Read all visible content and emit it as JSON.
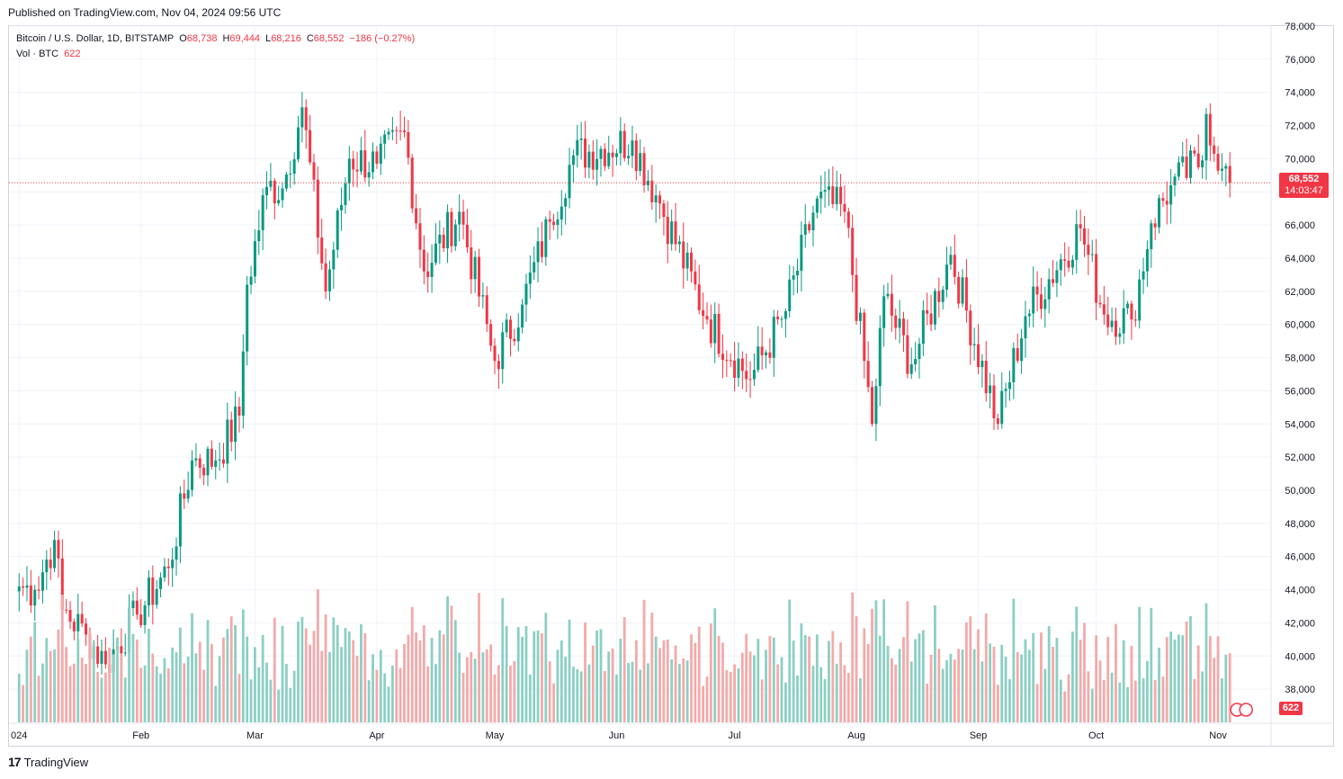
{
  "header": {
    "published": "Published on TradingView.com, Nov 04, 2024 09:56 UTC"
  },
  "legend": {
    "symbol": "Bitcoin / U.S. Dollar, 1D, BITSTAMP",
    "o_label": "O",
    "o_value": "68,738",
    "h_label": "H",
    "h_value": "69,444",
    "l_label": "L",
    "l_value": "68,216",
    "c_label": "C",
    "c_value": "68,552",
    "change": "−186 (−0.27%)",
    "vol_label": "Vol · BTC",
    "vol_value": "622"
  },
  "price_tag": {
    "price": "68,552",
    "countdown": "14:03:47"
  },
  "volume_tag": "622",
  "footer": {
    "brand": "TradingView"
  },
  "colors": {
    "up": "#089981",
    "down": "#f23645",
    "vol_up": "#8ccfc4",
    "vol_down": "#f4a9a9"
  },
  "chart_data": {
    "type": "candlestick",
    "symbol": "Bitcoin / U.S. Dollar",
    "interval": "1D",
    "exchange": "BITSTAMP",
    "x_tick_labels": [
      "024",
      "Feb",
      "Mar",
      "Apr",
      "May",
      "Jun",
      "Jul",
      "Aug",
      "Sep",
      "Oct",
      "Nov"
    ],
    "y_tick_labels": [
      "38,000",
      "40,000",
      "42,000",
      "44,000",
      "46,000",
      "48,000",
      "50,000",
      "52,000",
      "54,000",
      "56,000",
      "58,000",
      "60,000",
      "62,000",
      "64,000",
      "66,000",
      "68,000",
      "70,000",
      "72,000",
      "74,000",
      "76,000",
      "78,000"
    ],
    "ylim": [
      36000,
      78000
    ],
    "last_price": 68552,
    "grid": true,
    "series": [
      {
        "name": "Bitcoin / U.S. Dollar",
        "ohlc_close_anchors": [
          {
            "date": "2024-01-01",
            "close": 44200
          },
          {
            "date": "2024-01-05",
            "close": 44000
          },
          {
            "date": "2024-01-10",
            "close": 47000
          },
          {
            "date": "2024-01-12",
            "close": 42800
          },
          {
            "date": "2024-01-18",
            "close": 41300
          },
          {
            "date": "2024-01-23",
            "close": 39500
          },
          {
            "date": "2024-01-31",
            "close": 42500
          },
          {
            "date": "2024-02-08",
            "close": 45300
          },
          {
            "date": "2024-02-14",
            "close": 51800
          },
          {
            "date": "2024-02-20",
            "close": 51800
          },
          {
            "date": "2024-02-26",
            "close": 54500
          },
          {
            "date": "2024-02-28",
            "close": 62400
          },
          {
            "date": "2024-03-04",
            "close": 68300
          },
          {
            "date": "2024-03-08",
            "close": 68200
          },
          {
            "date": "2024-03-13",
            "close": 73100
          },
          {
            "date": "2024-03-19",
            "close": 62000
          },
          {
            "date": "2024-03-25",
            "close": 70000
          },
          {
            "date": "2024-04-01",
            "close": 69700
          },
          {
            "date": "2024-04-08",
            "close": 71600
          },
          {
            "date": "2024-04-13",
            "close": 63200
          },
          {
            "date": "2024-04-22",
            "close": 66800
          },
          {
            "date": "2024-05-01",
            "close": 57800
          },
          {
            "date": "2024-05-08",
            "close": 61200
          },
          {
            "date": "2024-05-15",
            "close": 66200
          },
          {
            "date": "2024-05-21",
            "close": 70200
          },
          {
            "date": "2024-06-05",
            "close": 71100
          },
          {
            "date": "2024-06-12",
            "close": 67300
          },
          {
            "date": "2024-06-24",
            "close": 60300
          },
          {
            "date": "2024-07-05",
            "close": 56700
          },
          {
            "date": "2024-07-14",
            "close": 60800
          },
          {
            "date": "2024-07-22",
            "close": 67600
          },
          {
            "date": "2024-07-29",
            "close": 66800
          },
          {
            "date": "2024-08-05",
            "close": 54000
          },
          {
            "date": "2024-08-08",
            "close": 61700
          },
          {
            "date": "2024-08-15",
            "close": 57600
          },
          {
            "date": "2024-08-25",
            "close": 64200
          },
          {
            "date": "2024-09-06",
            "close": 54000
          },
          {
            "date": "2024-09-13",
            "close": 60500
          },
          {
            "date": "2024-09-27",
            "close": 65800
          },
          {
            "date": "2024-10-03",
            "close": 60600
          },
          {
            "date": "2024-10-10",
            "close": 60300
          },
          {
            "date": "2024-10-15",
            "close": 66100
          },
          {
            "date": "2024-10-20",
            "close": 68400
          },
          {
            "date": "2024-10-28",
            "close": 69900
          },
          {
            "date": "2024-10-29",
            "close": 72700
          },
          {
            "date": "2024-11-02",
            "close": 69400
          },
          {
            "date": "2024-11-04",
            "close": 68552
          }
        ]
      }
    ],
    "volume_series": {
      "name": "Vol · BTC",
      "last": 622
    }
  }
}
